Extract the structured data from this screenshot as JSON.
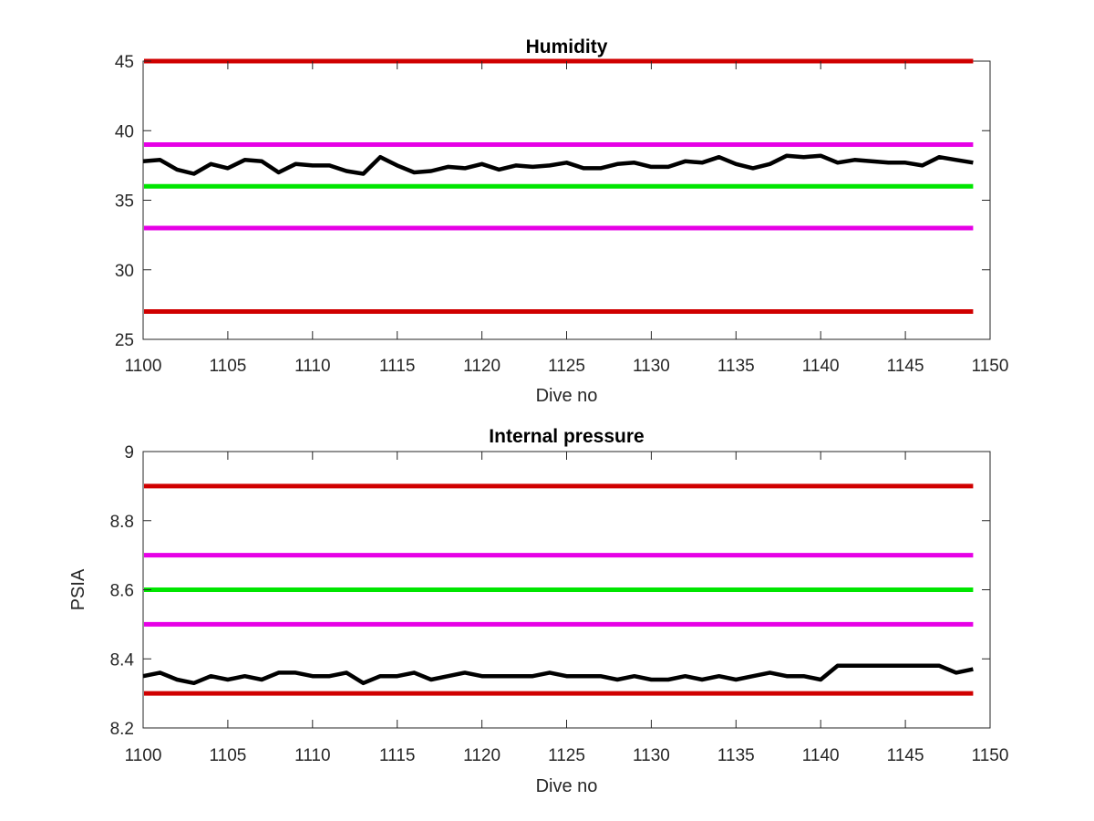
{
  "chart_data": [
    {
      "type": "line",
      "title": "Humidity",
      "xlabel": "Dive no",
      "ylabel": "",
      "xlim": [
        1100,
        1150
      ],
      "ylim": [
        25,
        45
      ],
      "xticks": [
        1100,
        1105,
        1110,
        1115,
        1120,
        1125,
        1130,
        1135,
        1140,
        1145,
        1150
      ],
      "yticks": [
        25,
        30,
        35,
        40,
        45
      ],
      "grid": false,
      "thresholds": [
        {
          "value": 45,
          "color": "#d00000"
        },
        {
          "value": 39,
          "color": "#e600e6"
        },
        {
          "value": 36,
          "color": "#00e600"
        },
        {
          "value": 33,
          "color": "#e600e6"
        },
        {
          "value": 27,
          "color": "#d00000"
        }
      ],
      "series": [
        {
          "color": "#000000",
          "x": [
            1100,
            1101,
            1102,
            1103,
            1104,
            1105,
            1106,
            1107,
            1108,
            1109,
            1110,
            1111,
            1112,
            1113,
            1114,
            1115,
            1116,
            1117,
            1118,
            1119,
            1120,
            1121,
            1122,
            1123,
            1124,
            1125,
            1126,
            1127,
            1128,
            1129,
            1130,
            1131,
            1132,
            1133,
            1134,
            1135,
            1136,
            1137,
            1138,
            1139,
            1140,
            1141,
            1142,
            1143,
            1144,
            1145,
            1146,
            1147,
            1148,
            1149
          ],
          "y": [
            37.8,
            37.9,
            37.2,
            36.9,
            37.6,
            37.3,
            37.9,
            37.8,
            37.0,
            37.6,
            37.5,
            37.5,
            37.1,
            36.9,
            38.1,
            37.5,
            37.0,
            37.1,
            37.4,
            37.3,
            37.6,
            37.2,
            37.5,
            37.4,
            37.5,
            37.7,
            37.3,
            37.3,
            37.6,
            37.7,
            37.4,
            37.4,
            37.8,
            37.7,
            38.1,
            37.6,
            37.3,
            37.6,
            38.2,
            38.1,
            38.2,
            37.7,
            37.9,
            37.8,
            37.7,
            37.7,
            37.5,
            38.1,
            37.9,
            37.7
          ]
        }
      ]
    },
    {
      "type": "line",
      "title": "Internal pressure",
      "xlabel": "Dive no",
      "ylabel": "PSIA",
      "xlim": [
        1100,
        1150
      ],
      "ylim": [
        8.2,
        9.0
      ],
      "xticks": [
        1100,
        1105,
        1110,
        1115,
        1120,
        1125,
        1130,
        1135,
        1140,
        1145,
        1150
      ],
      "yticks": [
        8.2,
        8.4,
        8.6,
        8.8,
        9.0
      ],
      "ytick_labels": [
        "8.2",
        "8.4",
        "8.6",
        "8.8",
        "9"
      ],
      "grid": false,
      "thresholds": [
        {
          "value": 8.9,
          "color": "#d00000"
        },
        {
          "value": 8.7,
          "color": "#e600e6"
        },
        {
          "value": 8.6,
          "color": "#00e600"
        },
        {
          "value": 8.5,
          "color": "#e600e6"
        },
        {
          "value": 8.3,
          "color": "#d00000"
        }
      ],
      "series": [
        {
          "color": "#000000",
          "x": [
            1100,
            1101,
            1102,
            1103,
            1104,
            1105,
            1106,
            1107,
            1108,
            1109,
            1110,
            1111,
            1112,
            1113,
            1114,
            1115,
            1116,
            1117,
            1118,
            1119,
            1120,
            1121,
            1122,
            1123,
            1124,
            1125,
            1126,
            1127,
            1128,
            1129,
            1130,
            1131,
            1132,
            1133,
            1134,
            1135,
            1136,
            1137,
            1138,
            1139,
            1140,
            1141,
            1142,
            1143,
            1144,
            1145,
            1146,
            1147,
            1148,
            1149
          ],
          "y": [
            8.35,
            8.36,
            8.34,
            8.33,
            8.35,
            8.34,
            8.35,
            8.34,
            8.36,
            8.36,
            8.35,
            8.35,
            8.36,
            8.33,
            8.35,
            8.35,
            8.36,
            8.34,
            8.35,
            8.36,
            8.35,
            8.35,
            8.35,
            8.35,
            8.36,
            8.35,
            8.35,
            8.35,
            8.34,
            8.35,
            8.34,
            8.34,
            8.35,
            8.34,
            8.35,
            8.34,
            8.35,
            8.36,
            8.35,
            8.35,
            8.34,
            8.38,
            8.38,
            8.38,
            8.38,
            8.38,
            8.38,
            8.38,
            8.36,
            8.37
          ]
        }
      ]
    }
  ]
}
